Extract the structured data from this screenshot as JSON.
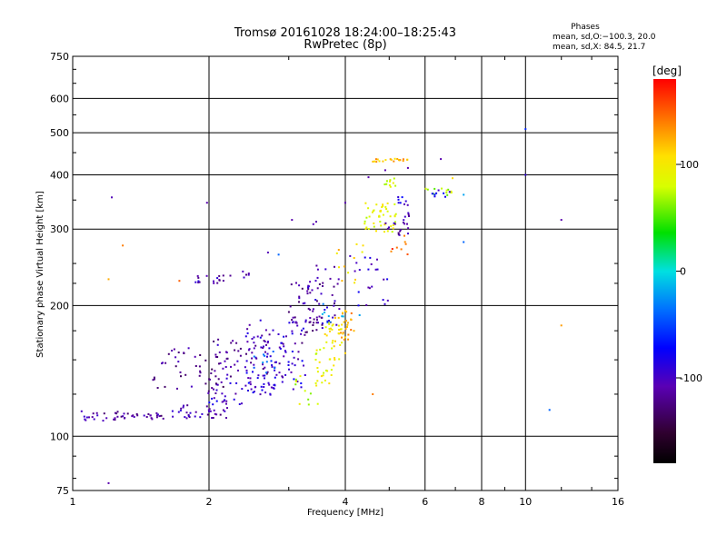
{
  "chart_data": {
    "type": "scatter",
    "title": "Tromsø 20161028 18:24:00–18:25:43",
    "subtitle": "RwPretec (8p)",
    "xlabel": "Frequency [MHz]",
    "ylabel": "Stationary phase Virtual Height [km]",
    "x_scale": "log",
    "y_scale": "log",
    "xlim": [
      1,
      16
    ],
    "ylim": [
      75,
      750
    ],
    "x_ticks": [
      {
        "value": 1,
        "label": "1"
      },
      {
        "value": 2,
        "label": "2"
      },
      {
        "value": 4,
        "label": "4"
      },
      {
        "value": 6,
        "label": "6"
      },
      {
        "value": 8,
        "label": "8"
      },
      {
        "value": 10,
        "label": "10"
      },
      {
        "value": 16,
        "label": "16"
      }
    ],
    "x_gridlines": [
      2,
      4,
      6,
      8,
      10
    ],
    "y_ticks": [
      {
        "value": 75,
        "label": "75"
      },
      {
        "value": 100,
        "label": "100"
      },
      {
        "value": 200,
        "label": "200"
      },
      {
        "value": 300,
        "label": "300"
      },
      {
        "value": 400,
        "label": "400"
      },
      {
        "value": 500,
        "label": "500"
      },
      {
        "value": 600,
        "label": "600"
      },
      {
        "value": 750,
        "label": "750"
      }
    ],
    "y_gridlines": [
      100,
      200,
      300,
      400,
      500,
      600
    ],
    "grid": true,
    "stats": {
      "heading": "Phases",
      "o_line": "mean, sd,O:−100.3, 20.0",
      "x_line": "mean, sd,X:  84.5, 21.7"
    },
    "colorbar": {
      "label": "[deg]",
      "range": [
        -180,
        180
      ],
      "ticks": [
        {
          "value": 100,
          "label": "100"
        },
        {
          "value": 0,
          "label": "0"
        },
        {
          "value": -100,
          "label": "-100"
        }
      ]
    },
    "point_groups": [
      {
        "f": [
          1.0,
          1.3
        ],
        "h": [
          108,
          115
        ],
        "phase": -110,
        "n": 25
      },
      {
        "f": [
          1.3,
          1.6
        ],
        "h": [
          109,
          113
        ],
        "phase": -115,
        "n": 22
      },
      {
        "f": [
          1.6,
          2.2
        ],
        "h": [
          110,
          118
        ],
        "phase": -110,
        "n": 35
      },
      {
        "f": [
          2.0,
          2.8
        ],
        "h": [
          118,
          135
        ],
        "phase": -95,
        "n": 40
      },
      {
        "f": [
          2.4,
          3.3
        ],
        "h": [
          128,
          150
        ],
        "phase": -90,
        "n": 40
      },
      {
        "f": [
          1.5,
          2.2
        ],
        "h": [
          125,
          160
        ],
        "phase": -120,
        "n": 50
      },
      {
        "f": [
          2.0,
          3.0
        ],
        "h": [
          135,
          170
        ],
        "phase": -110,
        "n": 60
      },
      {
        "f": [
          2.4,
          3.3
        ],
        "h": [
          150,
          185
        ],
        "phase": -100,
        "n": 45
      },
      {
        "f": [
          2.5,
          2.8
        ],
        "h": [
          140,
          160
        ],
        "phase": -40,
        "n": 10
      },
      {
        "f": [
          3.0,
          3.6
        ],
        "h": [
          160,
          230
        ],
        "phase": -115,
        "n": 50
      },
      {
        "f": [
          3.3,
          3.9
        ],
        "h": [
          180,
          250
        ],
        "phase": -105,
        "n": 35
      },
      {
        "f": [
          3.1,
          3.5
        ],
        "h": [
          118,
          140
        ],
        "phase": 80,
        "n": 12
      },
      {
        "f": [
          3.4,
          3.8
        ],
        "h": [
          130,
          160
        ],
        "phase": 90,
        "n": 25
      },
      {
        "f": [
          3.6,
          4.0
        ],
        "h": [
          150,
          185
        ],
        "phase": 100,
        "n": 30
      },
      {
        "f": [
          3.8,
          4.2
        ],
        "h": [
          165,
          195
        ],
        "phase": 125,
        "n": 25
      },
      {
        "f": [
          3.5,
          4.0
        ],
        "h": [
          180,
          210
        ],
        "phase": -30,
        "n": 8
      },
      {
        "f": [
          1.85,
          2.2
        ],
        "h": [
          225,
          235
        ],
        "phase": -105,
        "n": 16
      },
      {
        "f": [
          2.2,
          2.45
        ],
        "h": [
          232,
          240
        ],
        "phase": -110,
        "n": 6
      },
      {
        "f": [
          3.8,
          4.4
        ],
        "h": [
          220,
          280
        ],
        "phase": 110,
        "n": 12
      },
      {
        "f": [
          4.2,
          5.0
        ],
        "h": [
          200,
          260
        ],
        "phase": -95,
        "n": 20
      },
      {
        "f": [
          4.4,
          5.2
        ],
        "h": [
          295,
          345
        ],
        "phase": 90,
        "n": 45
      },
      {
        "f": [
          4.9,
          5.6
        ],
        "h": [
          290,
          330
        ],
        "phase": -110,
        "n": 20
      },
      {
        "f": [
          5.0,
          5.5
        ],
        "h": [
          255,
          290
        ],
        "phase": 150,
        "n": 8
      },
      {
        "f": [
          4.6,
          5.6
        ],
        "h": [
          428,
          436
        ],
        "phase": 120,
        "n": 20
      },
      {
        "f": [
          4.8,
          5.2
        ],
        "h": [
          375,
          395
        ],
        "phase": 85,
        "n": 10
      },
      {
        "f": [
          5.2,
          5.6
        ],
        "h": [
          340,
          360
        ],
        "phase": -90,
        "n": 8
      },
      {
        "f": [
          6.0,
          7.0
        ],
        "h": [
          358,
          372
        ],
        "phase": 70,
        "n": 12
      },
      {
        "f": [
          6.2,
          6.8
        ],
        "h": [
          355,
          375
        ],
        "phase": -80,
        "n": 8
      }
    ],
    "isolated_points": [
      {
        "f": 1.2,
        "h": 78,
        "phase": -110
      },
      {
        "f": 1.22,
        "h": 355,
        "phase": -105
      },
      {
        "f": 1.2,
        "h": 230,
        "phase": 125
      },
      {
        "f": 1.29,
        "h": 275,
        "phase": 140
      },
      {
        "f": 1.72,
        "h": 228,
        "phase": 150
      },
      {
        "f": 1.98,
        "h": 345,
        "phase": -110
      },
      {
        "f": 2.7,
        "h": 265,
        "phase": -105
      },
      {
        "f": 2.85,
        "h": 262,
        "phase": -40
      },
      {
        "f": 3.05,
        "h": 315,
        "phase": -110
      },
      {
        "f": 3.4,
        "h": 308,
        "phase": -105
      },
      {
        "f": 3.45,
        "h": 312,
        "phase": -110
      },
      {
        "f": 4.0,
        "h": 345,
        "phase": -110
      },
      {
        "f": 4.1,
        "h": 260,
        "phase": -100
      },
      {
        "f": 4.2,
        "h": 240,
        "phase": -105
      },
      {
        "f": 4.3,
        "h": 190,
        "phase": -20
      },
      {
        "f": 4.6,
        "h": 125,
        "phase": 140
      },
      {
        "f": 4.5,
        "h": 395,
        "phase": -110
      },
      {
        "f": 4.9,
        "h": 410,
        "phase": -110
      },
      {
        "f": 5.5,
        "h": 415,
        "phase": -110
      },
      {
        "f": 6.5,
        "h": 435,
        "phase": -110
      },
      {
        "f": 6.9,
        "h": 393,
        "phase": 110
      },
      {
        "f": 7.3,
        "h": 360,
        "phase": -20
      },
      {
        "f": 7.3,
        "h": 280,
        "phase": -40
      },
      {
        "f": 10.0,
        "h": 510,
        "phase": -60
      },
      {
        "f": 10.0,
        "h": 400,
        "phase": -90
      },
      {
        "f": 11.3,
        "h": 115,
        "phase": -40
      },
      {
        "f": 12.0,
        "h": 315,
        "phase": -110
      },
      {
        "f": 12.0,
        "h": 180,
        "phase": 130
      }
    ]
  }
}
